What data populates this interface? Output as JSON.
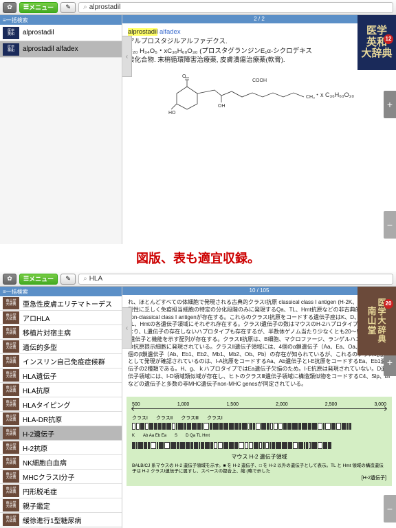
{
  "banner": "図版、表も適宜収録。",
  "top": {
    "search": "alprostadil",
    "menu": "メニュー",
    "tab": "一括検索",
    "counter": "2 / 2",
    "items": [
      {
        "label": "alprostadil",
        "sel": false
      },
      {
        "label": "alprostadil alfadex",
        "sel": true
      }
    ],
    "brand": {
      "l1": "医学",
      "l2": "英和",
      "l3": "大辞典",
      "num": "12"
    },
    "title_hl": "alprostadil",
    "title2": "alfadex",
    "kana": "アルプロスタジルアルファデクス.",
    "body1": "C₂₀ H₃₄O₅・xC₃₆H₆₀O₃₀ (プロスタグランジンE₁α-シクロデキス",
    "body2": "接化合物. 末梢循環障害治療薬, 皮膚潰瘍治療薬(軟膏).",
    "chem_label": "・x C₃₆H₆₀O₃₀"
  },
  "bot": {
    "search": "HLA",
    "menu": "メニュー",
    "tab": "一括検索",
    "counter": "10 / 105",
    "items": [
      "亜急性皮膚エリテマトーデス",
      "アロHLA",
      "移植片対宿主病",
      "遺伝的多型",
      "インスリン自己免疫症候群",
      "HLA遺伝子",
      "HLA抗原",
      "HLAタイピング",
      "HLA-DR抗原",
      "H-2遺伝子",
      "H-2抗原",
      "NK細胞白血病",
      "MHCクラスⅠ分子",
      "円形脱毛症",
      "親子鑑定",
      "緩徐進行1型糖尿病"
    ],
    "sel_idx": 9,
    "brand": {
      "l1": "南",
      "l2": "山",
      "l3": "堂",
      "r1": "医",
      "r2": "学",
      "r3": "大",
      "r4": "辞",
      "r5": "典",
      "num": "20"
    },
    "article": "れ、ほとんどすべての体細胞で発現される古典的クラスⅠ抗原 classical class Ⅰ antigen (H-2K、D、L) と、多型性に乏しく免疫担当細胞の特定の分化段階のみに発現するQa、TL、Hmt抗原などの非古典的クラスⅠ抗原 non-classical class Ⅰ antigenが存在する。これらのクラスⅠ抗原をコードする遺伝子座はK、D、L、Qa、TL、Hmtの各遺伝子領域にそれぞれ存在する。クラスⅠ遺伝子の数はマウスのH-2ハプロタイプによって異なり、L遺伝子の存在しないハプロタイプも存在するが、半数体ゲノム当たり少なくとも20～50個のクラスⅠ遺伝子と機能を示す配列が存在する。クラスⅡ抗原は、B細胞、マクロファージ、ランゲルハンス細胞などの抗原提示細胞に発現されている。クラスⅡ遺伝子領域には、4個のα鎖遺伝子（Aa、Ea、Oa、Ma）と、7個のβ鎖遺伝子（Ab、Eb1、Eb2、Mb1、Mb2、Ob、Pb）の存在が知られているが、これるのクラスⅡ抗原として発現が確認されているのは、I-A抗原をコードするAa、Ab遺伝子とI-E抗原をコードするEa、Eb1遺伝子の2種類である。H、g、ｋハプロタイプではEa遺伝子欠損のため。I-E抗原は発現されていない。D遺伝子領域には、I-D領域類似域が存在し、ヒトのクラスⅢ遺伝子領域に構造類似物をコードするC4、Slp、Bf などの遺伝子と多数の非MHC遺伝子non-MHC genesが同定されている。",
    "diagram": {
      "scale": [
        "500",
        "1,000",
        "1,500",
        "2,000",
        "2,500",
        "3,000"
      ],
      "row1_labels": [
        "クラスⅠ",
        "クラスⅡ",
        "クラスⅢ",
        "クラスⅠ"
      ],
      "row1_sub": [
        "K",
        "Ab Aa Eb Ea",
        "S",
        "D   Qa   TL   Hmt"
      ],
      "caption": "マウス H-2 遺伝子領域",
      "note": "BALB/CJ 系マウスの H-2 遺伝子領域を示す。■ を H-2 遺伝子、□ を H-2 以外の遺伝子として表示。TL と Hmt 領域の構造遺伝子は H-2 クラスⅠ遺伝子に属すし、スペースの都合上、縮 (略で示した",
      "ref": "[H-2遺伝子]"
    }
  }
}
